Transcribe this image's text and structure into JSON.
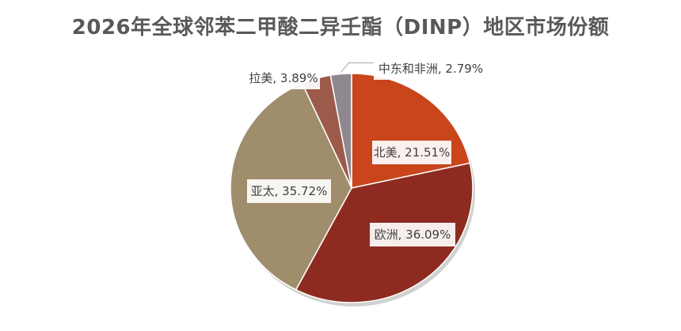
{
  "chart_data": {
    "type": "pie",
    "title": "2026年全球邻苯二甲酸二异壬酯（DINP）地区市场份额",
    "categories": [
      "北美",
      "欧洲",
      "亚太",
      "拉美",
      "中东和非洲"
    ],
    "values": [
      21.51,
      36.09,
      35.72,
      3.89,
      2.79
    ],
    "labels": [
      "北美, 21.51%",
      "欧洲, 36.09%",
      "亚太, 35.72%",
      "拉美, 3.89%",
      "中东和非洲, 2.79%"
    ],
    "colors": [
      "#C9451C",
      "#8E2B21",
      "#A08D6C",
      "#9C5A4A",
      "#908891"
    ],
    "legend": "none"
  }
}
